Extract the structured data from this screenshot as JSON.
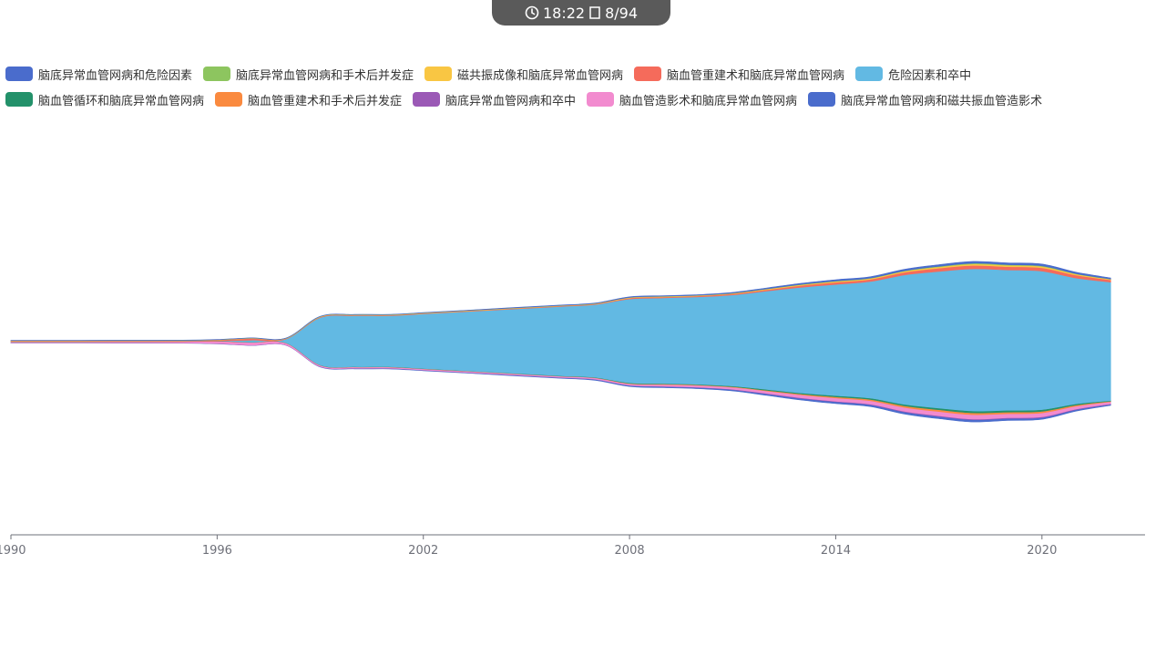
{
  "status": {
    "time": "18:22",
    "page": "8/94",
    "clock_icon": "clock-icon",
    "page_icon": "page-icon"
  },
  "chart_data": {
    "type": "area",
    "subtype": "streamgraph",
    "legend_position": "top",
    "grid": false,
    "x": [
      1990,
      1991,
      1992,
      1993,
      1994,
      1995,
      1996,
      1997,
      1998,
      1999,
      2000,
      2001,
      2002,
      2003,
      2004,
      2005,
      2006,
      2007,
      2008,
      2009,
      2010,
      2011,
      2012,
      2013,
      2014,
      2015,
      2016,
      2017,
      2018,
      2019,
      2020,
      2021,
      2022
    ],
    "xlim": [
      1990,
      2023
    ],
    "xticks": [
      1990,
      1996,
      2002,
      2008,
      2014,
      2020
    ],
    "series": [
      {
        "name": "危险因素和卒中",
        "color": "#62b9e3",
        "values": [
          0,
          0,
          0,
          0,
          0,
          0,
          0,
          1,
          2,
          26,
          28,
          28,
          30,
          32,
          34,
          36,
          38,
          40,
          46,
          47,
          48,
          50,
          54,
          58,
          61,
          64,
          71,
          75,
          78,
          77,
          76,
          69,
          65
        ]
      },
      {
        "name": "脑血管重建术和脑底异常血管网病",
        "color": "#f56b5b",
        "values": [
          0.3,
          0.3,
          0.3,
          0.3,
          0.3,
          0.3,
          0.5,
          1,
          0.3,
          0.3,
          0.3,
          0.3,
          0.3,
          0.3,
          0.3,
          0.3,
          0.3,
          0.3,
          0.5,
          0.5,
          0.5,
          0.6,
          0.7,
          1,
          1.2,
          1.2,
          1.5,
          1.8,
          1.9,
          1.8,
          1.8,
          1.6,
          1.2
        ]
      },
      {
        "name": "磁共振成像和脑底异常血管网病",
        "color": "#f9c643",
        "values": [
          0.1,
          0.1,
          0.1,
          0.1,
          0.1,
          0.1,
          0.1,
          0.1,
          0.1,
          0.2,
          0.2,
          0.2,
          0.2,
          0.2,
          0.2,
          0.2,
          0.2,
          0.2,
          0.3,
          0.3,
          0.3,
          0.3,
          0.4,
          0.4,
          0.5,
          0.5,
          0.6,
          0.7,
          0.8,
          0.8,
          0.8,
          0.6,
          0.4
        ]
      },
      {
        "name": "脑底异常血管网病和手术后并发症",
        "color": "#8dc55f",
        "values": [
          0.1,
          0.1,
          0.1,
          0.1,
          0.1,
          0.1,
          0.1,
          0.1,
          0.1,
          0.1,
          0.1,
          0.1,
          0.1,
          0.1,
          0.1,
          0.1,
          0.1,
          0.1,
          0.1,
          0.1,
          0.1,
          0.1,
          0.1,
          0.2,
          0.2,
          0.2,
          0.2,
          0.3,
          0.4,
          0.3,
          0.3,
          0.2,
          0.1
        ]
      },
      {
        "name": "脑底异常血管网病和危险因素",
        "color": "#4a6ccc",
        "values": [
          0.1,
          0.1,
          0.1,
          0.1,
          0.1,
          0.1,
          0.1,
          0.1,
          0.1,
          0.1,
          0.1,
          0.1,
          0.1,
          0.1,
          0.2,
          0.2,
          0.2,
          0.2,
          0.3,
          0.3,
          0.3,
          0.4,
          0.5,
          0.6,
          0.7,
          0.7,
          0.8,
          0.9,
          1.0,
          1.0,
          1.0,
          0.8,
          0.6
        ]
      },
      {
        "name": "脑血管循环和脑底异常血管网病",
        "color": "#23916a",
        "values": [
          0.1,
          0.1,
          0.1,
          0.1,
          0.1,
          0.1,
          0.1,
          0.1,
          0.1,
          0.1,
          0.1,
          0.1,
          0.1,
          0.1,
          0.1,
          0.2,
          0.2,
          0.2,
          0.3,
          0.3,
          0.3,
          0.4,
          0.5,
          0.6,
          0.7,
          0.7,
          0.8,
          0.9,
          1.0,
          1.0,
          0.9,
          0.7,
          0.3
        ]
      },
      {
        "name": "脑血管重建术和手术后并发症",
        "color": "#fa8a3f",
        "values": [
          0.1,
          0.1,
          0.1,
          0.1,
          0.1,
          0.1,
          0.1,
          0.1,
          0.1,
          0.1,
          0.1,
          0.1,
          0.1,
          0.1,
          0.1,
          0.1,
          0.1,
          0.1,
          0.2,
          0.3,
          0.3,
          0.3,
          0.4,
          0.5,
          0.6,
          0.7,
          0.9,
          1.0,
          1.0,
          0.9,
          0.9,
          0.6,
          0.3
        ]
      },
      {
        "name": "脑底异常血管网病和卒中",
        "color": "#9b59b6",
        "values": [
          0.1,
          0.1,
          0.1,
          0.1,
          0.1,
          0.1,
          0.1,
          0.1,
          0.1,
          0.1,
          0.1,
          0.1,
          0.1,
          0.1,
          0.1,
          0.1,
          0.1,
          0.1,
          0.1,
          0.2,
          0.2,
          0.2,
          0.3,
          0.3,
          0.3,
          0.3,
          0.4,
          0.4,
          0.4,
          0.4,
          0.4,
          0.3,
          0.2
        ]
      },
      {
        "name": "脑血管造影术和脑底异常血管网病",
        "color": "#f28bcf",
        "values": [
          0.5,
          0.5,
          0.5,
          0.6,
          0.6,
          0.7,
          1.2,
          1.5,
          1,
          0.6,
          0.6,
          0.6,
          0.6,
          0.6,
          0.6,
          0.6,
          0.6,
          0.7,
          0.8,
          0.9,
          1.0,
          1.1,
          1.3,
          1.6,
          1.8,
          1.9,
          2.1,
          2.3,
          2.4,
          2.2,
          2.1,
          1.6,
          1.2
        ]
      },
      {
        "name": "脑底异常血管网病和磁共振血管造影术",
        "color": "#4a6ccc",
        "values": [
          0.1,
          0.1,
          0.1,
          0.1,
          0.1,
          0.1,
          0.1,
          0.1,
          0.1,
          0.2,
          0.3,
          0.3,
          0.3,
          0.3,
          0.4,
          0.4,
          0.4,
          0.5,
          0.6,
          0.6,
          0.6,
          0.7,
          0.8,
          0.9,
          1.0,
          1.0,
          1.1,
          1.2,
          1.2,
          1.1,
          1.0,
          0.8,
          0.6
        ]
      }
    ]
  }
}
